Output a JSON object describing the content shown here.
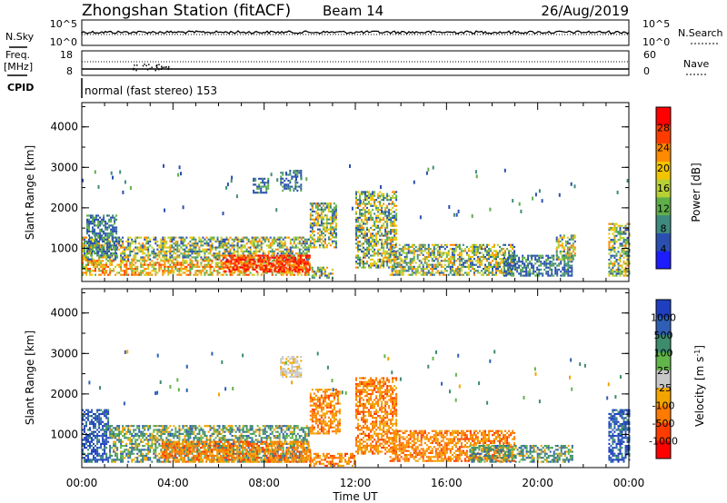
{
  "header": {
    "station_title": "Zhongshan Station (fitACF)",
    "beam": "Beam 14",
    "date": "26/Aug/2019"
  },
  "sky_panel": {
    "left_label": "N.Sky",
    "left_ticks": [
      "10^5",
      "10^0"
    ],
    "right_label": "N.Search",
    "right_ticks": [
      "10^5",
      "10^0"
    ]
  },
  "freq_panel": {
    "left_label_1": "Freq.",
    "left_label_2": "[MHz]",
    "left_ticks": [
      "18",
      "8"
    ],
    "right_label": "Nave",
    "right_ticks": [
      "60",
      "0"
    ]
  },
  "cpid": {
    "label": "CPID",
    "mode_text": "normal (fast stereo) 153"
  },
  "chart_data": [
    {
      "type": "heatmap",
      "title": "Power",
      "ylabel": "Slant Range [km]",
      "xlabel": "Time UT",
      "ylim": [
        180,
        4600
      ],
      "xlim": [
        0,
        24
      ],
      "y_ticks": [
        "1000",
        "2000",
        "3000",
        "4000"
      ],
      "x_ticks": [
        "00:00",
        "04:00",
        "08:00",
        "12:00",
        "16:00",
        "20:00",
        "00:00"
      ],
      "colorbar_label": "Power [dB]",
      "colorbar_ticks": [
        "4",
        "8",
        "12",
        "16",
        "20",
        "24",
        "28"
      ],
      "colorbar_range": [
        0,
        32
      ],
      "colorbar_colors": [
        "#1c1cff",
        "#2a4fb0",
        "#3f8a7e",
        "#5fae4a",
        "#b7d133",
        "#f2c400",
        "#ff8a00",
        "#ff3c00",
        "#ff0000"
      ],
      "blobs": [
        {
          "t0": 0.0,
          "t1": 10.0,
          "r0": 320,
          "r1": 700,
          "cat": "core"
        },
        {
          "t0": 0.0,
          "t1": 10.0,
          "r0": 700,
          "r1": 1250,
          "cat": "mid"
        },
        {
          "t0": 0.2,
          "t1": 1.5,
          "r0": 800,
          "r1": 1800,
          "cat": "low"
        },
        {
          "t0": 6.2,
          "t1": 10.0,
          "r0": 400,
          "r1": 800,
          "cat": "hot"
        },
        {
          "t0": 8.7,
          "t1": 9.6,
          "r0": 2400,
          "r1": 2900,
          "cat": "low"
        },
        {
          "t0": 7.5,
          "t1": 8.2,
          "r0": 2350,
          "r1": 2700,
          "cat": "low"
        },
        {
          "t0": 10.0,
          "t1": 11.2,
          "r0": 1000,
          "r1": 2100,
          "cat": "mixed"
        },
        {
          "t0": 10.0,
          "t1": 11.0,
          "r0": 250,
          "r1": 500,
          "cat": "mid"
        },
        {
          "t0": 12.0,
          "t1": 13.8,
          "r0": 500,
          "r1": 2400,
          "cat": "mixed"
        },
        {
          "t0": 13.5,
          "t1": 19.0,
          "r0": 320,
          "r1": 1100,
          "cat": "mid"
        },
        {
          "t0": 18.5,
          "t1": 21.5,
          "r0": 300,
          "r1": 800,
          "cat": "low"
        },
        {
          "t0": 20.8,
          "t1": 21.6,
          "r0": 700,
          "r1": 1300,
          "cat": "mixed"
        },
        {
          "t0": 23.1,
          "t1": 24.0,
          "r0": 300,
          "r1": 1600,
          "cat": "mixed"
        }
      ]
    },
    {
      "type": "heatmap",
      "title": "Velocity",
      "ylabel": "Slant Range [km]",
      "xlabel": "Time UT",
      "ylim": [
        180,
        4600
      ],
      "xlim": [
        0,
        24
      ],
      "y_ticks": [
        "1000",
        "2000",
        "3000",
        "4000"
      ],
      "x_ticks": [
        "00:00",
        "04:00",
        "08:00",
        "12:00",
        "16:00",
        "20:00",
        "00:00"
      ],
      "colorbar_label": "Velocity [m s-1]",
      "colorbar_ticks": [
        "1000",
        "500",
        "100",
        "25",
        "-25",
        "-100",
        "-500",
        "-1000"
      ],
      "colorbar_colors": [
        "#1e3fbf",
        "#2f5fb5",
        "#3d8c6c",
        "#62b548",
        "#c8c8c8",
        "#f2a400",
        "#ff7a00",
        "#ff3c00",
        "#ff0000"
      ],
      "blobs": [
        {
          "t0": 0.0,
          "t1": 1.2,
          "r0": 300,
          "r1": 1600,
          "cat": "blue"
        },
        {
          "t0": 1.2,
          "t1": 10.0,
          "r0": 300,
          "r1": 1200,
          "cat": "green"
        },
        {
          "t0": 3.5,
          "t1": 10.0,
          "r0": 300,
          "r1": 800,
          "cat": "orange"
        },
        {
          "t0": 8.7,
          "t1": 9.6,
          "r0": 2400,
          "r1": 2900,
          "cat": "grey"
        },
        {
          "t0": 10.0,
          "t1": 11.3,
          "r0": 1000,
          "r1": 2100,
          "cat": "orange"
        },
        {
          "t0": 10.0,
          "t1": 12.0,
          "r0": 200,
          "r1": 500,
          "cat": "orange"
        },
        {
          "t0": 12.0,
          "t1": 13.8,
          "r0": 500,
          "r1": 2400,
          "cat": "orange"
        },
        {
          "t0": 13.5,
          "t1": 19.0,
          "r0": 320,
          "r1": 1100,
          "cat": "orange"
        },
        {
          "t0": 17.0,
          "t1": 21.5,
          "r0": 300,
          "r1": 700,
          "cat": "green"
        },
        {
          "t0": 23.1,
          "t1": 24.0,
          "r0": 300,
          "r1": 1600,
          "cat": "blue"
        }
      ]
    }
  ]
}
